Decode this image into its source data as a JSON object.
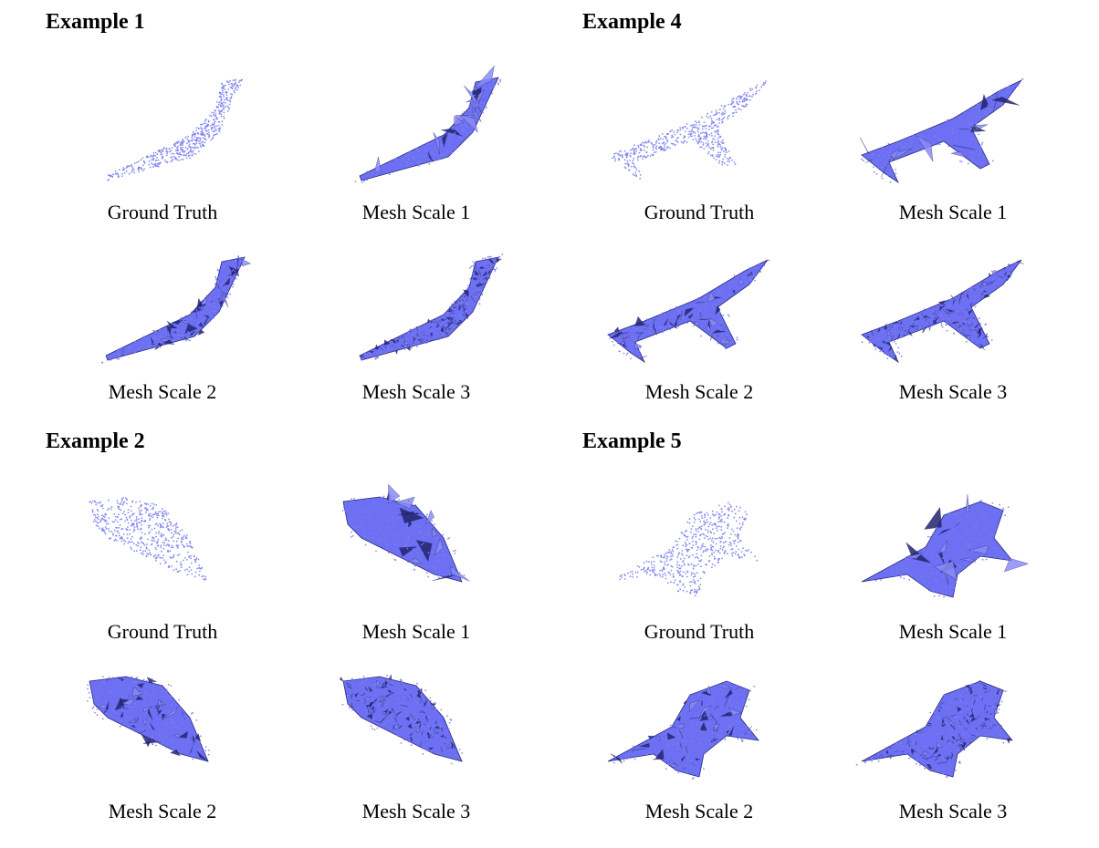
{
  "examples": [
    {
      "title": "Example 1",
      "panels": [
        {
          "caption": "Ground Truth",
          "kind": "points",
          "shape": "bend"
        },
        {
          "caption": "Mesh Scale 1",
          "kind": "mesh-coarse",
          "shape": "bend"
        },
        {
          "caption": "Mesh Scale 2",
          "kind": "mesh-mid",
          "shape": "bend"
        },
        {
          "caption": "Mesh Scale 3",
          "kind": "mesh-fine",
          "shape": "bend"
        }
      ]
    },
    {
      "title": "Example 4",
      "panels": [
        {
          "caption": "Ground Truth",
          "kind": "points",
          "shape": "plane"
        },
        {
          "caption": "Mesh Scale 1",
          "kind": "mesh-coarse",
          "shape": "plane"
        },
        {
          "caption": "Mesh Scale 2",
          "kind": "mesh-mid",
          "shape": "plane"
        },
        {
          "caption": "Mesh Scale 3",
          "kind": "mesh-fine",
          "shape": "plane"
        }
      ]
    },
    {
      "title": "Example 2",
      "panels": [
        {
          "caption": "Ground Truth",
          "kind": "points",
          "shape": "wedge"
        },
        {
          "caption": "Mesh Scale 1",
          "kind": "mesh-coarse",
          "shape": "wedge"
        },
        {
          "caption": "Mesh Scale 2",
          "kind": "mesh-mid",
          "shape": "wedge"
        },
        {
          "caption": "Mesh Scale 3",
          "kind": "mesh-fine",
          "shape": "wedge"
        }
      ]
    },
    {
      "title": "Example 5",
      "panels": [
        {
          "caption": "Ground Truth",
          "kind": "points",
          "shape": "swept"
        },
        {
          "caption": "Mesh Scale 1",
          "kind": "mesh-coarse",
          "shape": "swept"
        },
        {
          "caption": "Mesh Scale 2",
          "kind": "mesh-mid",
          "shape": "swept"
        },
        {
          "caption": "Mesh Scale 3",
          "kind": "mesh-fine",
          "shape": "swept"
        }
      ]
    }
  ],
  "colors": {
    "points": "#7c7ff0",
    "mesh_fill": "#6d70f2",
    "mesh_dark": "#23246e",
    "mesh_edge": "#2a2b80"
  }
}
